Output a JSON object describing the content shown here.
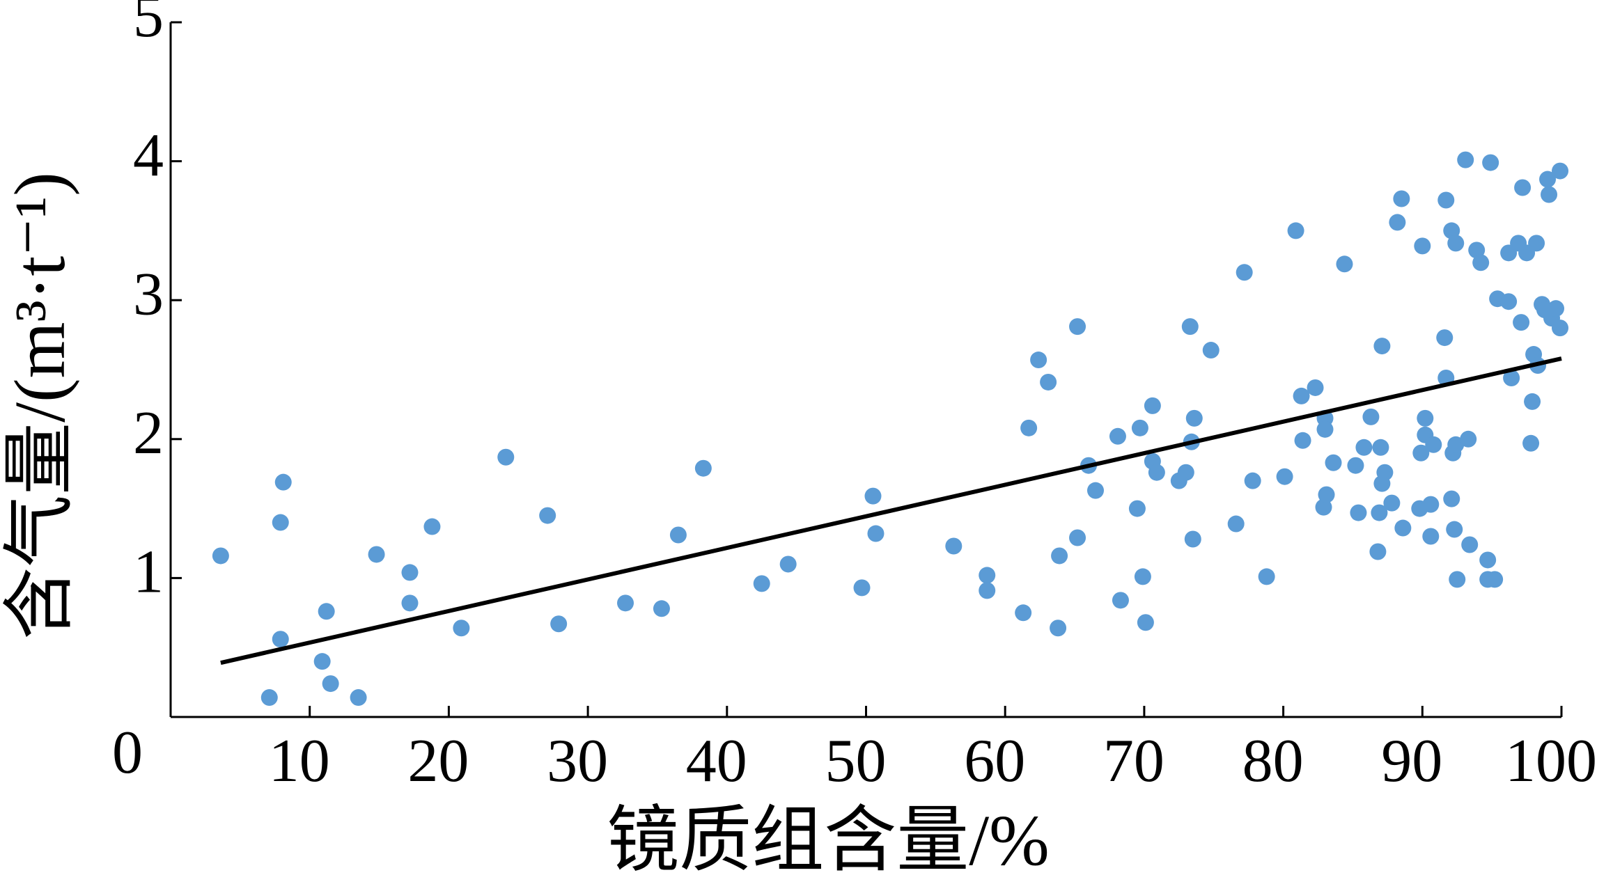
{
  "chart_data": {
    "type": "scatter",
    "x_label": "镜质组含量/%",
    "y_label": "含气量/(m³·t⁻¹)",
    "xlim": [
      0,
      100
    ],
    "ylim": [
      0,
      5
    ],
    "xticks": [
      10,
      20,
      30,
      40,
      50,
      60,
      70,
      80,
      90,
      100
    ],
    "yticks": [
      0,
      1,
      2,
      3,
      4,
      5
    ],
    "color": "#5B9BD5",
    "x": [
      3.6,
      7.1,
      7.9,
      7.9,
      8.1,
      10.9,
      11.2,
      11.5,
      13.5,
      14.8,
      17.2,
      17.2,
      18.8,
      20.9,
      24.1,
      27.1,
      27.9,
      32.7,
      35.3,
      36.5,
      38.3,
      42.5,
      44.4,
      49.7,
      50.5,
      50.7,
      56.3,
      58.7,
      58.7,
      61.3,
      61.7,
      62.4,
      63.1,
      63.9,
      63.8,
      65.2,
      65.2,
      66.0,
      66.5,
      68.1,
      68.3,
      69.5,
      69.7,
      69.9,
      70.1,
      70.6,
      70.6,
      70.9,
      72.5,
      73.0,
      73.3,
      73.4,
      73.6,
      73.5,
      74.8,
      76.6,
      77.2,
      77.8,
      78.8,
      80.1,
      80.9,
      81.3,
      81.4,
      82.3,
      82.9,
      83.0,
      83.0,
      83.1,
      83.6,
      84.4,
      85.2,
      85.4,
      85.8,
      86.3,
      86.8,
      86.9,
      87.0,
      87.1,
      87.1,
      87.3,
      87.8,
      88.2,
      88.5,
      88.6,
      89.8,
      89.9,
      90.0,
      90.2,
      90.2,
      90.6,
      90.6,
      90.8,
      91.6,
      91.7,
      91.7,
      92.1,
      92.1,
      92.2,
      92.3,
      92.4,
      92.4,
      92.5,
      93.1,
      93.3,
      93.4,
      93.9,
      94.2,
      94.7,
      94.7,
      94.9,
      95.2,
      95.4,
      96.2,
      96.2,
      96.4,
      96.9,
      97.1,
      97.2,
      97.5,
      97.8,
      97.9,
      98.0,
      98.2,
      98.3,
      98.6,
      98.8,
      99.0,
      99.1,
      99.3,
      99.6,
      99.9,
      99.9
    ],
    "values": [
      1.16,
      0.14,
      0.56,
      1.4,
      1.69,
      0.4,
      0.76,
      0.24,
      0.14,
      1.17,
      1.04,
      0.82,
      1.37,
      0.64,
      1.87,
      1.45,
      0.67,
      0.82,
      0.78,
      1.31,
      1.79,
      0.96,
      1.1,
      0.93,
      1.59,
      1.32,
      1.23,
      1.02,
      0.91,
      0.75,
      2.08,
      2.57,
      2.41,
      1.16,
      0.64,
      1.29,
      2.81,
      1.81,
      1.63,
      2.02,
      0.84,
      1.5,
      2.08,
      1.01,
      0.68,
      2.24,
      1.84,
      1.76,
      1.7,
      1.76,
      2.81,
      1.98,
      2.15,
      1.28,
      2.64,
      1.39,
      3.2,
      1.7,
      1.01,
      1.73,
      3.5,
      2.31,
      1.99,
      2.37,
      1.51,
      2.15,
      2.07,
      1.6,
      1.83,
      3.26,
      1.81,
      1.47,
      1.94,
      2.16,
      1.19,
      1.47,
      1.94,
      1.68,
      2.67,
      1.76,
      1.54,
      3.56,
      3.73,
      1.36,
      1.5,
      1.9,
      3.39,
      2.15,
      2.03,
      1.53,
      1.3,
      1.96,
      2.73,
      3.72,
      2.44,
      3.5,
      1.57,
      1.9,
      1.35,
      1.96,
      3.41,
      0.99,
      4.01,
      2.0,
      1.24,
      3.36,
      3.27,
      1.13,
      0.99,
      3.99,
      0.99,
      3.01,
      2.99,
      3.34,
      2.44,
      3.41,
      2.84,
      3.81,
      3.34,
      1.97,
      2.27,
      2.61,
      3.41,
      2.53,
      2.97,
      2.93,
      3.87,
      3.76,
      2.87,
      2.94,
      3.93,
      2.8
    ],
    "trend": {
      "x": [
        3.6,
        100
      ],
      "values": [
        0.39,
        2.58
      ],
      "color": "#000000"
    }
  }
}
